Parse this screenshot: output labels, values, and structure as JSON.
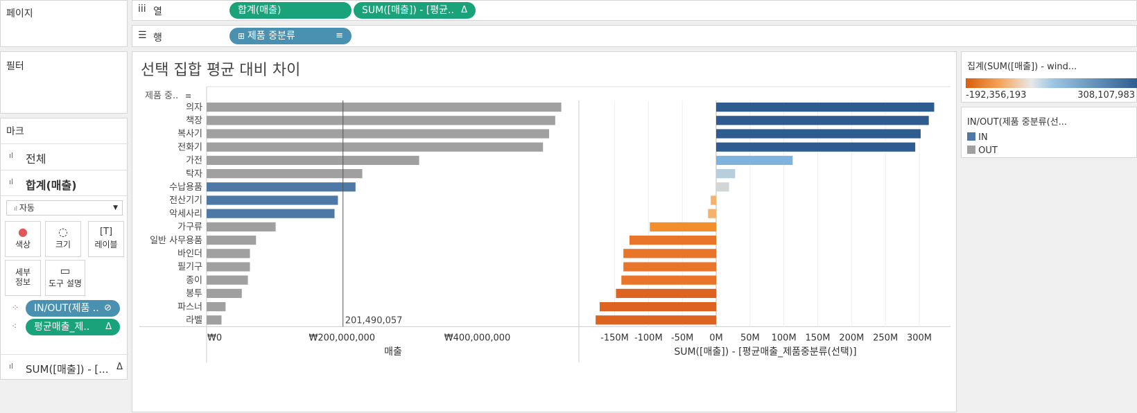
{
  "left_panel": {
    "pages_label": "페이지",
    "filters_label": "필터",
    "marks_label": "마크",
    "all_label": "전체",
    "sum_sales_label": "합계(매출)",
    "mark_type": "자동",
    "buttons": {
      "color": "색상",
      "size": "크기",
      "label": "레이블",
      "detail": "세부 정보",
      "tooltip": "도구 설명"
    },
    "pill_inout": "IN/OUT(제품 ..",
    "pill_avg": "평균매출_제..",
    "bottom_label": "SUM([매출]) - [..."
  },
  "shelves": {
    "columns_label": "열",
    "rows_label": "행",
    "col_pill_1": "합계(매출)",
    "col_pill_2": "SUM([매출]) - [평균..",
    "row_pill": "제품 중분류"
  },
  "legend": {
    "color_title": "집계(SUM([매출]) - wind...",
    "color_min": "-192,356,193",
    "color_max": "308,107,983",
    "inout_title": "IN/OUT(제품 중분류(선...",
    "items": [
      {
        "label": "IN",
        "color": "#4e79a7"
      },
      {
        "label": "OUT",
        "color": "#a0a0a0"
      }
    ]
  },
  "chart_data": {
    "type": "bar",
    "title": "선택 집합 평균 대비 차이",
    "row_header": "제품 중..",
    "categories": [
      "의자",
      "책장",
      "복사기",
      "전화기",
      "가전",
      "탁자",
      "수납용품",
      "전산기기",
      "악세사리",
      "가구류",
      "일반 사무용품",
      "바인더",
      "필기구",
      "종이",
      "봉투",
      "파스너",
      "라벨"
    ],
    "sales": {
      "xlabel": "매출",
      "tick_labels": [
        "₩0",
        "₩200,000,000",
        "₩400,000,000"
      ],
      "xlim": [
        0,
        550000000
      ],
      "values": [
        524000000,
        515000000,
        506000000,
        497000000,
        314000000,
        230000000,
        220000000,
        194000000,
        189000000,
        102000000,
        73000000,
        64000000,
        64000000,
        61000000,
        52000000,
        28000000,
        22000000
      ],
      "inout": [
        "OUT",
        "OUT",
        "OUT",
        "OUT",
        "OUT",
        "OUT",
        "IN",
        "IN",
        "IN",
        "OUT",
        "OUT",
        "OUT",
        "OUT",
        "OUT",
        "OUT",
        "OUT",
        "OUT"
      ],
      "reference_value": 201490057,
      "reference_label": "201,490,057"
    },
    "diff": {
      "xlabel": "SUM([매출]) - [평균매출_제품중분류(선택)]",
      "tick_labels": [
        "-150M",
        "-100M",
        "-50M",
        "0M",
        "50M",
        "100M",
        "150M",
        "200M",
        "250M",
        "300M"
      ],
      "xlim": [
        -180000000,
        340000000
      ],
      "values": [
        322000000,
        314000000,
        302000000,
        294000000,
        113000000,
        28000000,
        19000000,
        -8000000,
        -12000000,
        -98000000,
        -128000000,
        -137000000,
        -137000000,
        -140000000,
        -148000000,
        -172000000,
        -178000000
      ]
    }
  }
}
